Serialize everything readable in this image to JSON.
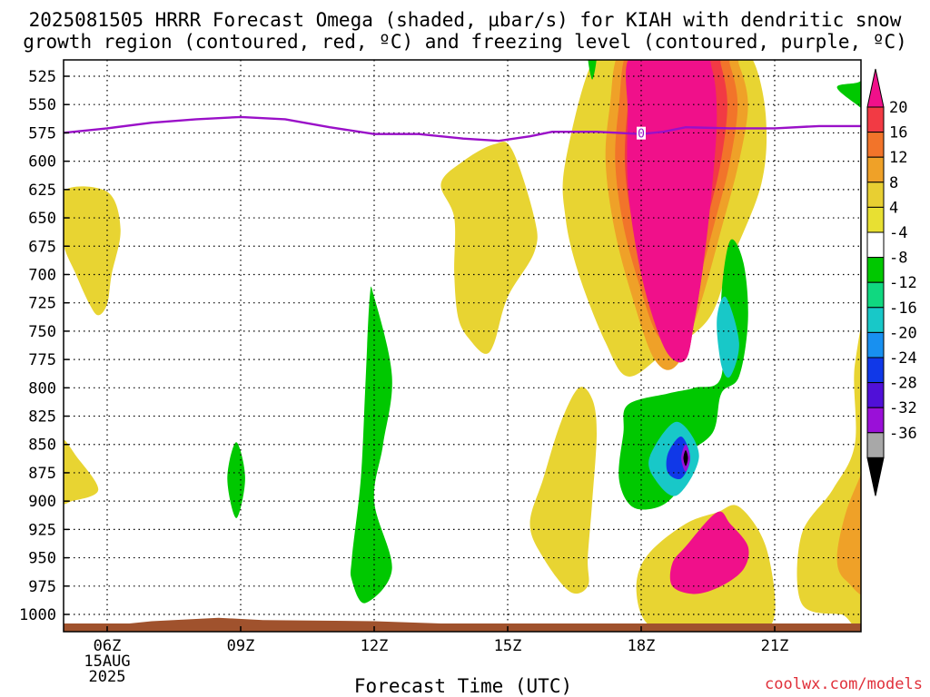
{
  "title": {
    "line1": "2025081505 HRRR Forecast Omega (shaded, µbar/s) for KIAH with dendritic snow",
    "line2": "growth region (contoured, red, ºC) and freezing level (contoured, purple, ºC)"
  },
  "watermark": "coolwx.com/models",
  "chart_data": {
    "type": "heatmap",
    "title": "2025081505 HRRR Forecast Omega (shaded, µbar/s) for KIAH with dendritic snow growth region (contoured, red, ºC) and freezing level (contoured, purple, ºC)",
    "xlabel": "Forecast Time (UTC)",
    "ylabel": "",
    "x_ticks": [
      "06Z",
      "09Z",
      "12Z",
      "15Z",
      "18Z",
      "21Z"
    ],
    "x_tick_hours": [
      6,
      9,
      12,
      15,
      18,
      21
    ],
    "x_date_label": [
      "15AUG",
      "2025"
    ],
    "xlim_hours": [
      5,
      23.2
    ],
    "y_ticks": [
      525,
      550,
      575,
      600,
      625,
      650,
      675,
      700,
      725,
      750,
      775,
      800,
      825,
      850,
      875,
      900,
      925,
      950,
      975,
      1000
    ],
    "ylim_hPa": [
      1015,
      510
    ],
    "grid": true,
    "colorbar": {
      "labels": [
        "20",
        "16",
        "12",
        "8",
        "4",
        "-4",
        "-8",
        "-12",
        "-16",
        "-20",
        "-24",
        "-28",
        "-32",
        "-36"
      ],
      "colors": [
        "#f0108a",
        "#f23a44",
        "#f2742a",
        "#efa128",
        "#e8cf32",
        "#e8e032",
        "#ffffff",
        "#00c800",
        "#10d880",
        "#18c8c8",
        "#1890f0",
        "#1038e8",
        "#5010d8",
        "#9a10d8",
        "#a8a8a8",
        "#000000"
      ]
    },
    "freezing_level": {
      "label": "0",
      "color": "#9a10c8",
      "points": [
        [
          5.0,
          575
        ],
        [
          6.0,
          571
        ],
        [
          7.0,
          566
        ],
        [
          8.0,
          563
        ],
        [
          9.0,
          561
        ],
        [
          10.0,
          563
        ],
        [
          11.0,
          570
        ],
        [
          12.0,
          576
        ],
        [
          13.0,
          576
        ],
        [
          14.0,
          580
        ],
        [
          14.8,
          582
        ],
        [
          15.5,
          578
        ],
        [
          16.0,
          574
        ],
        [
          17.0,
          574
        ],
        [
          18.0,
          576
        ],
        [
          18.5,
          574
        ],
        [
          19.0,
          570
        ],
        [
          20.0,
          571
        ],
        [
          21.0,
          571
        ],
        [
          22.0,
          569
        ],
        [
          23.2,
          569
        ]
      ]
    },
    "omega_regions": [
      {
        "value": 5,
        "points": [
          [
            5.0,
            627
          ],
          [
            6.0,
            627
          ],
          [
            6.3,
            660
          ],
          [
            6.1,
            700
          ],
          [
            6.0,
            726
          ],
          [
            5.8,
            736
          ],
          [
            5.6,
            726
          ],
          [
            5.3,
            700
          ],
          [
            5.0,
            670
          ]
        ]
      },
      {
        "value": 5,
        "points": [
          [
            5.0,
            846
          ],
          [
            5.3,
            860
          ],
          [
            5.8,
            890
          ],
          [
            5.2,
            900
          ],
          [
            5.0,
            900
          ],
          [
            5.0,
            870
          ]
        ]
      },
      {
        "value": 5,
        "points": [
          [
            13.5,
            620
          ],
          [
            14.0,
            600
          ],
          [
            14.7,
            585
          ],
          [
            15.1,
            590
          ],
          [
            15.6,
            650
          ],
          [
            15.6,
            680
          ],
          [
            15.0,
            720
          ],
          [
            14.7,
            760
          ],
          [
            14.5,
            770
          ],
          [
            14.2,
            760
          ],
          [
            13.9,
            740
          ],
          [
            13.8,
            700
          ],
          [
            13.8,
            650
          ]
        ]
      },
      {
        "value": 5,
        "points": [
          [
            17.0,
            505
          ],
          [
            18.0,
            505
          ],
          [
            20.0,
            505
          ],
          [
            20.5,
            510
          ],
          [
            20.8,
            560
          ],
          [
            20.7,
            620
          ],
          [
            20.0,
            690
          ],
          [
            19.5,
            740
          ],
          [
            18.5,
            770
          ],
          [
            17.7,
            790
          ],
          [
            17.2,
            760
          ],
          [
            16.6,
            700
          ],
          [
            16.3,
            650
          ],
          [
            16.3,
            600
          ]
        ]
      },
      {
        "value": 10,
        "points": [
          [
            17.5,
            505
          ],
          [
            18.2,
            505
          ],
          [
            20.0,
            505
          ],
          [
            20.2,
            515
          ],
          [
            20.4,
            550
          ],
          [
            20.2,
            600
          ],
          [
            19.8,
            660
          ],
          [
            19.3,
            730
          ],
          [
            18.8,
            780
          ],
          [
            18.3,
            775
          ],
          [
            17.8,
            720
          ],
          [
            17.4,
            660
          ],
          [
            17.2,
            600
          ],
          [
            17.3,
            550
          ]
        ]
      },
      {
        "value": 20,
        "points": [
          [
            17.8,
            505
          ],
          [
            19.3,
            505
          ],
          [
            19.6,
            520
          ],
          [
            19.7,
            560
          ],
          [
            19.6,
            620
          ],
          [
            19.4,
            690
          ],
          [
            19.2,
            740
          ],
          [
            19.0,
            775
          ],
          [
            18.6,
            770
          ],
          [
            18.2,
            730
          ],
          [
            17.9,
            680
          ],
          [
            17.7,
            620
          ],
          [
            17.7,
            560
          ]
        ]
      },
      {
        "value": 5,
        "points": [
          [
            16.6,
            800
          ],
          [
            16.9,
            810
          ],
          [
            17.0,
            840
          ],
          [
            16.9,
            900
          ],
          [
            16.8,
            950
          ],
          [
            16.8,
            975
          ],
          [
            16.4,
            980
          ],
          [
            15.8,
            950
          ],
          [
            15.5,
            920
          ],
          [
            15.8,
            880
          ],
          [
            16.2,
            830
          ]
        ]
      },
      {
        "value": 5,
        "points": [
          [
            18.2,
            945
          ],
          [
            19.0,
            920
          ],
          [
            19.7,
            910
          ],
          [
            20.2,
            905
          ],
          [
            20.8,
            940
          ],
          [
            21.0,
            1000
          ],
          [
            20.5,
            1015
          ],
          [
            19.0,
            1015
          ],
          [
            18.4,
            1015
          ],
          [
            18.0,
            1000
          ],
          [
            17.9,
            970
          ]
        ]
      },
      {
        "value": 20,
        "points": [
          [
            19.0,
            940
          ],
          [
            19.7,
            910
          ],
          [
            20.0,
            920
          ],
          [
            20.4,
            940
          ],
          [
            20.3,
            960
          ],
          [
            19.8,
            975
          ],
          [
            19.2,
            982
          ],
          [
            18.7,
            975
          ],
          [
            18.7,
            955
          ]
        ]
      },
      {
        "value": 5,
        "points": [
          [
            22.3,
            890
          ],
          [
            22.8,
            850
          ],
          [
            22.8,
            780
          ],
          [
            23.2,
            730
          ],
          [
            23.2,
            1000
          ],
          [
            22.5,
            1000
          ],
          [
            21.6,
            990
          ],
          [
            21.6,
            930
          ]
        ]
      },
      {
        "value": 10,
        "points": [
          [
            22.6,
            910
          ],
          [
            23.0,
            870
          ],
          [
            23.2,
            840
          ],
          [
            23.2,
            975
          ],
          [
            22.6,
            970
          ],
          [
            22.4,
            950
          ]
        ]
      },
      {
        "value": -5,
        "points": [
          [
            12.0,
            720
          ],
          [
            12.4,
            790
          ],
          [
            12.2,
            850
          ],
          [
            12.0,
            900
          ],
          [
            12.4,
            960
          ],
          [
            11.8,
            990
          ],
          [
            11.5,
            970
          ],
          [
            11.5,
            950
          ],
          [
            11.7,
            880
          ],
          [
            11.8,
            800
          ],
          [
            11.9,
            720
          ]
        ]
      },
      {
        "value": -5,
        "points": [
          [
            8.9,
            848
          ],
          [
            9.1,
            880
          ],
          [
            8.9,
            915
          ],
          [
            8.7,
            880
          ]
        ]
      },
      {
        "value": -5,
        "points": [
          [
            16.8,
            505
          ],
          [
            17.0,
            505
          ],
          [
            16.9,
            528
          ]
        ]
      },
      {
        "value": -5,
        "points": [
          [
            22.9,
            530
          ],
          [
            23.2,
            520
          ],
          [
            23.2,
            565
          ],
          [
            23.0,
            555
          ],
          [
            22.4,
            535
          ]
        ]
      },
      {
        "value": -5,
        "points": [
          [
            20.0,
            670
          ],
          [
            20.3,
            690
          ],
          [
            20.4,
            740
          ],
          [
            20.2,
            790
          ],
          [
            19.8,
            805
          ],
          [
            19.6,
            840
          ],
          [
            18.9,
            860
          ],
          [
            18.5,
            875
          ],
          [
            18.8,
            890
          ],
          [
            18.4,
            905
          ],
          [
            17.8,
            905
          ],
          [
            17.5,
            880
          ],
          [
            17.6,
            840
          ],
          [
            17.7,
            815
          ],
          [
            18.6,
            805
          ],
          [
            19.2,
            800
          ],
          [
            19.8,
            790
          ],
          [
            19.8,
            720
          ]
        ]
      },
      {
        "value": -12,
        "points": [
          [
            19.9,
            720
          ],
          [
            20.2,
            760
          ],
          [
            20.0,
            790
          ],
          [
            19.8,
            780
          ],
          [
            19.7,
            740
          ]
        ]
      },
      {
        "value": -14,
        "points": [
          [
            18.8,
            830
          ],
          [
            19.3,
            860
          ],
          [
            18.8,
            895
          ],
          [
            18.3,
            880
          ],
          [
            18.2,
            860
          ]
        ]
      },
      {
        "value": -22,
        "points": [
          [
            18.9,
            843
          ],
          [
            19.1,
            862
          ],
          [
            18.9,
            880
          ],
          [
            18.6,
            875
          ],
          [
            18.6,
            858
          ]
        ]
      },
      {
        "value": -30,
        "points": [
          [
            19.0,
            850
          ],
          [
            19.1,
            862
          ],
          [
            19.0,
            874
          ],
          [
            18.9,
            862
          ]
        ]
      },
      {
        "value": -40,
        "points": [
          [
            19.0,
            855
          ],
          [
            19.05,
            862
          ],
          [
            19.0,
            869
          ],
          [
            18.95,
            862
          ]
        ]
      }
    ],
    "terrain": {
      "color": "#a0522d",
      "points": [
        [
          5.0,
          1008
        ],
        [
          6.5,
          1008
        ],
        [
          7.0,
          1006
        ],
        [
          8.5,
          1003
        ],
        [
          9.5,
          1005
        ],
        [
          12.0,
          1006
        ],
        [
          13.5,
          1008
        ],
        [
          23.2,
          1008
        ]
      ]
    }
  }
}
